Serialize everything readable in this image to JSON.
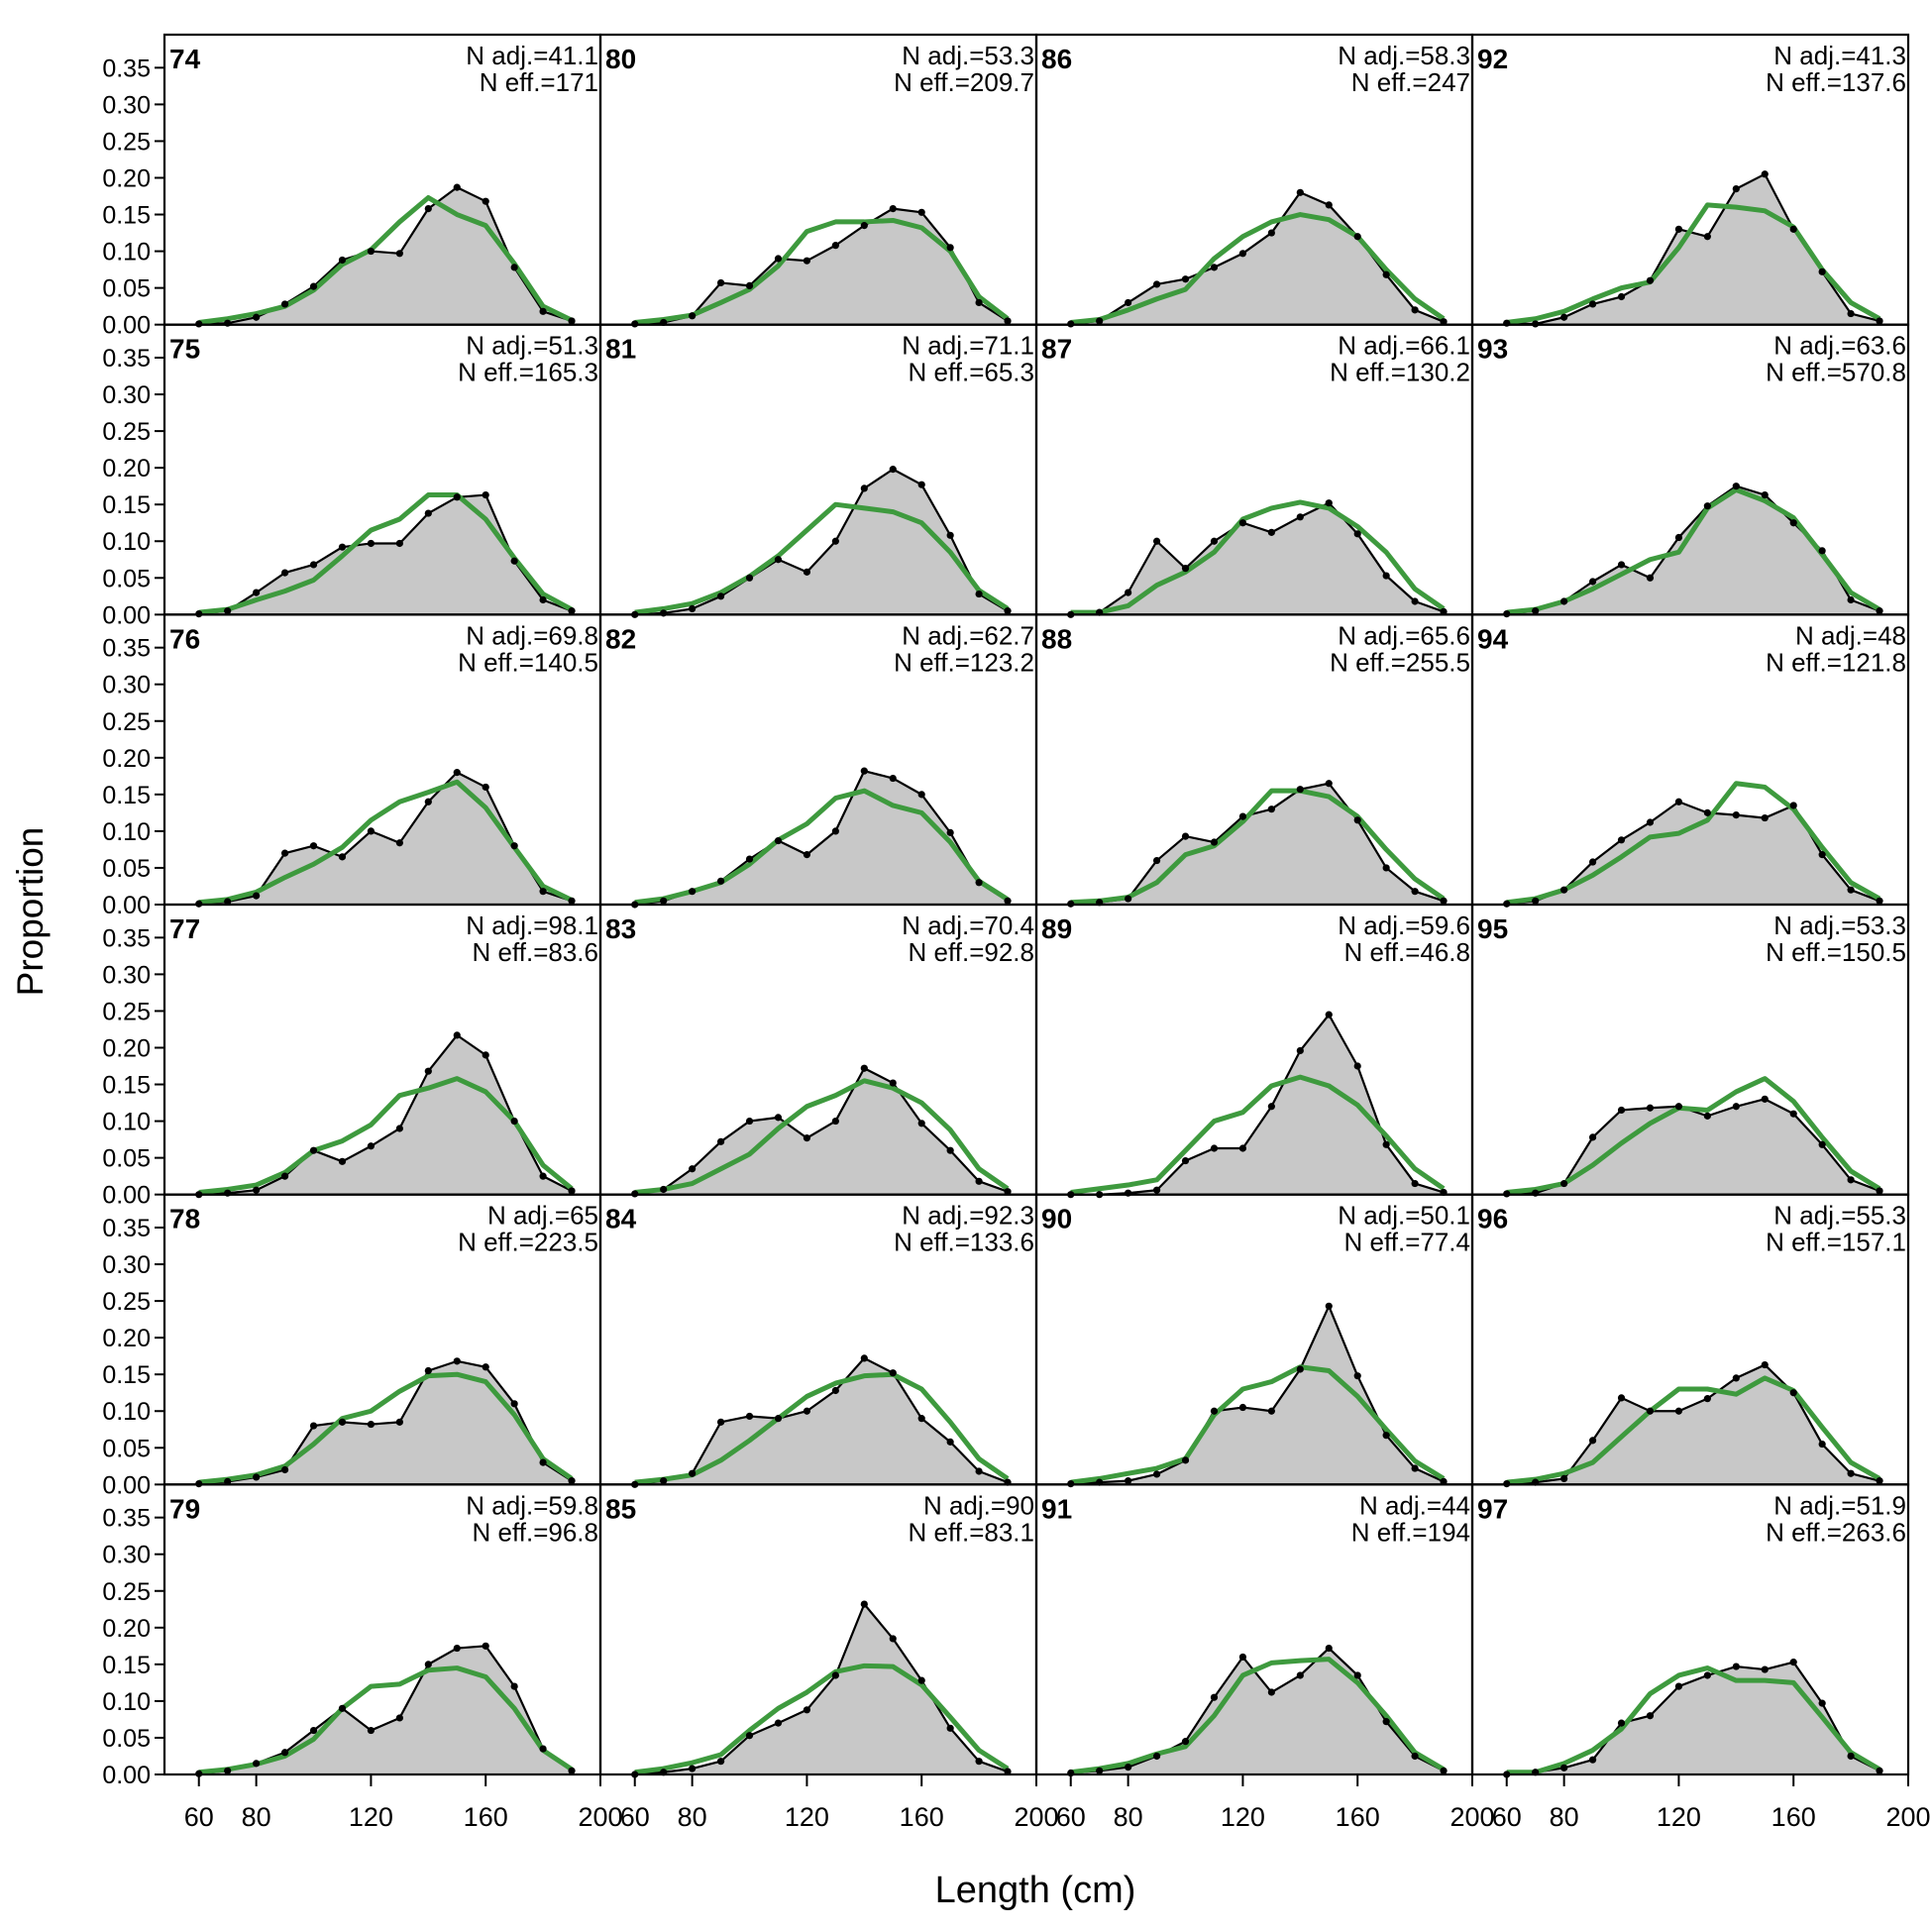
{
  "figure": {
    "ylabel": "Proportion",
    "xlabel": "Length (cm)"
  },
  "axes": {
    "x_ticks": [
      60,
      80,
      120,
      160,
      200
    ],
    "y_ticks": [
      "0.00",
      "0.05",
      "0.10",
      "0.15",
      "0.20",
      "0.25",
      "0.30",
      "0.35"
    ],
    "xlim": [
      48,
      200
    ],
    "ylim": [
      0,
      0.395
    ]
  },
  "colors": {
    "observed_fill": "#c8c8c8",
    "observed_line": "#000000",
    "expected_line": "#3e9a3e",
    "baseline": "#aaaaaa"
  },
  "chart_data": {
    "type": "area",
    "layout": {
      "rows": 6,
      "cols": 4,
      "order": "column-major"
    },
    "x": [
      60,
      70,
      80,
      90,
      100,
      110,
      120,
      130,
      140,
      150,
      160,
      170,
      180,
      190
    ],
    "panels": [
      {
        "label": "74",
        "n_adj": "N adj.=41.1",
        "n_eff": "N eff.=171",
        "observed": [
          0.001,
          0.002,
          0.01,
          0.028,
          0.052,
          0.088,
          0.1,
          0.097,
          0.158,
          0.187,
          0.168,
          0.078,
          0.018,
          0.005
        ],
        "expected": [
          0.003,
          0.008,
          0.015,
          0.025,
          0.047,
          0.082,
          0.102,
          0.14,
          0.173,
          0.15,
          0.135,
          0.083,
          0.025,
          0.006
        ]
      },
      {
        "label": "75",
        "n_adj": "N adj.=51.3",
        "n_eff": "N eff.=165.3",
        "observed": [
          0.001,
          0.005,
          0.03,
          0.057,
          0.068,
          0.092,
          0.097,
          0.097,
          0.138,
          0.16,
          0.163,
          0.073,
          0.02,
          0.005
        ],
        "expected": [
          0.003,
          0.007,
          0.02,
          0.032,
          0.047,
          0.08,
          0.115,
          0.13,
          0.163,
          0.163,
          0.13,
          0.077,
          0.028,
          0.007
        ]
      },
      {
        "label": "76",
        "n_adj": "N adj.=69.8",
        "n_eff": "N eff.=140.5",
        "observed": [
          0.001,
          0.004,
          0.012,
          0.07,
          0.08,
          0.065,
          0.1,
          0.084,
          0.14,
          0.18,
          0.16,
          0.08,
          0.018,
          0.005
        ],
        "expected": [
          0.003,
          0.007,
          0.017,
          0.037,
          0.055,
          0.078,
          0.115,
          0.14,
          0.153,
          0.167,
          0.132,
          0.078,
          0.025,
          0.006
        ]
      },
      {
        "label": "77",
        "n_adj": "N adj.=98.1",
        "n_eff": "N eff.=83.6",
        "observed": [
          0.0,
          0.002,
          0.006,
          0.025,
          0.06,
          0.045,
          0.066,
          0.09,
          0.168,
          0.217,
          0.19,
          0.1,
          0.025,
          0.005
        ],
        "expected": [
          0.003,
          0.007,
          0.013,
          0.03,
          0.06,
          0.073,
          0.095,
          0.135,
          0.145,
          0.158,
          0.14,
          0.1,
          0.04,
          0.008
        ]
      },
      {
        "label": "78",
        "n_adj": "N adj.=65",
        "n_eff": "N eff.=223.5",
        "observed": [
          0.001,
          0.004,
          0.01,
          0.02,
          0.08,
          0.085,
          0.082,
          0.085,
          0.155,
          0.168,
          0.16,
          0.11,
          0.03,
          0.005
        ],
        "expected": [
          0.003,
          0.007,
          0.013,
          0.025,
          0.055,
          0.09,
          0.1,
          0.127,
          0.148,
          0.15,
          0.14,
          0.095,
          0.035,
          0.008
        ]
      },
      {
        "label": "79",
        "n_adj": "N adj.=59.8",
        "n_eff": "N eff.=96.8",
        "observed": [
          0.001,
          0.005,
          0.015,
          0.03,
          0.06,
          0.09,
          0.06,
          0.077,
          0.15,
          0.172,
          0.175,
          0.12,
          0.035,
          0.005
        ],
        "expected": [
          0.003,
          0.007,
          0.014,
          0.025,
          0.048,
          0.09,
          0.12,
          0.123,
          0.142,
          0.145,
          0.133,
          0.09,
          0.033,
          0.007
        ]
      },
      {
        "label": "80",
        "n_adj": "N adj.=53.3",
        "n_eff": "N eff.=209.7",
        "observed": [
          0.001,
          0.003,
          0.012,
          0.057,
          0.053,
          0.09,
          0.087,
          0.108,
          0.135,
          0.158,
          0.153,
          0.105,
          0.03,
          0.005
        ],
        "expected": [
          0.003,
          0.007,
          0.013,
          0.03,
          0.048,
          0.08,
          0.127,
          0.14,
          0.14,
          0.142,
          0.132,
          0.1,
          0.038,
          0.008
        ]
      },
      {
        "label": "81",
        "n_adj": "N adj.=71.1",
        "n_eff": "N eff.=65.3",
        "observed": [
          0.0,
          0.002,
          0.008,
          0.025,
          0.05,
          0.075,
          0.058,
          0.1,
          0.172,
          0.198,
          0.177,
          0.108,
          0.028,
          0.005
        ],
        "expected": [
          0.003,
          0.008,
          0.015,
          0.03,
          0.052,
          0.08,
          0.115,
          0.15,
          0.145,
          0.14,
          0.125,
          0.085,
          0.033,
          0.008
        ]
      },
      {
        "label": "82",
        "n_adj": "N adj.=62.7",
        "n_eff": "N eff.=123.2",
        "observed": [
          0.0,
          0.005,
          0.018,
          0.032,
          0.062,
          0.087,
          0.068,
          0.1,
          0.182,
          0.172,
          0.15,
          0.098,
          0.03,
          0.005
        ],
        "expected": [
          0.003,
          0.008,
          0.018,
          0.03,
          0.055,
          0.088,
          0.11,
          0.145,
          0.155,
          0.135,
          0.125,
          0.085,
          0.032,
          0.007
        ]
      },
      {
        "label": "83",
        "n_adj": "N adj.=70.4",
        "n_eff": "N eff.=92.8",
        "observed": [
          0.001,
          0.007,
          0.035,
          0.072,
          0.1,
          0.105,
          0.077,
          0.1,
          0.172,
          0.152,
          0.097,
          0.06,
          0.018,
          0.004
        ],
        "expected": [
          0.003,
          0.007,
          0.015,
          0.035,
          0.055,
          0.09,
          0.12,
          0.135,
          0.155,
          0.145,
          0.125,
          0.088,
          0.035,
          0.008
        ]
      },
      {
        "label": "84",
        "n_adj": "N adj.=92.3",
        "n_eff": "N eff.=133.6",
        "observed": [
          0.0,
          0.005,
          0.015,
          0.085,
          0.093,
          0.09,
          0.1,
          0.128,
          0.172,
          0.152,
          0.09,
          0.058,
          0.018,
          0.003
        ],
        "expected": [
          0.003,
          0.007,
          0.013,
          0.033,
          0.06,
          0.09,
          0.12,
          0.138,
          0.148,
          0.15,
          0.13,
          0.085,
          0.035,
          0.008
        ]
      },
      {
        "label": "85",
        "n_adj": "N adj.=90",
        "n_eff": "N eff.=83.1",
        "observed": [
          0.0,
          0.003,
          0.008,
          0.018,
          0.053,
          0.07,
          0.088,
          0.135,
          0.232,
          0.185,
          0.128,
          0.063,
          0.018,
          0.004
        ],
        "expected": [
          0.003,
          0.008,
          0.016,
          0.027,
          0.06,
          0.09,
          0.112,
          0.14,
          0.148,
          0.147,
          0.122,
          0.078,
          0.033,
          0.008
        ]
      },
      {
        "label": "86",
        "n_adj": "N adj.=58.3",
        "n_eff": "N eff.=247",
        "observed": [
          0.001,
          0.005,
          0.03,
          0.055,
          0.062,
          0.078,
          0.097,
          0.125,
          0.18,
          0.163,
          0.12,
          0.068,
          0.02,
          0.004
        ],
        "expected": [
          0.003,
          0.007,
          0.02,
          0.035,
          0.048,
          0.09,
          0.12,
          0.14,
          0.15,
          0.143,
          0.12,
          0.075,
          0.035,
          0.008
        ]
      },
      {
        "label": "87",
        "n_adj": "N adj.=66.1",
        "n_eff": "N eff.=130.2",
        "observed": [
          0.0,
          0.003,
          0.03,
          0.1,
          0.063,
          0.1,
          0.125,
          0.112,
          0.133,
          0.152,
          0.11,
          0.053,
          0.018,
          0.004
        ],
        "expected": [
          0.003,
          0.003,
          0.012,
          0.04,
          0.058,
          0.085,
          0.13,
          0.145,
          0.153,
          0.145,
          0.12,
          0.085,
          0.035,
          0.008
        ]
      },
      {
        "label": "88",
        "n_adj": "N adj.=65.6",
        "n_eff": "N eff.=255.5",
        "observed": [
          0.001,
          0.003,
          0.008,
          0.06,
          0.093,
          0.085,
          0.12,
          0.13,
          0.157,
          0.165,
          0.115,
          0.05,
          0.018,
          0.005
        ],
        "expected": [
          0.003,
          0.005,
          0.01,
          0.03,
          0.068,
          0.08,
          0.113,
          0.155,
          0.155,
          0.147,
          0.12,
          0.075,
          0.035,
          0.008
        ]
      },
      {
        "label": "89",
        "n_adj": "N adj.=59.6",
        "n_eff": "N eff.=46.8",
        "observed": [
          0.0,
          0.0,
          0.002,
          0.006,
          0.046,
          0.063,
          0.063,
          0.12,
          0.196,
          0.245,
          0.175,
          0.068,
          0.015,
          0.003
        ],
        "expected": [
          0.003,
          0.008,
          0.013,
          0.02,
          0.06,
          0.1,
          0.112,
          0.148,
          0.16,
          0.148,
          0.122,
          0.08,
          0.035,
          0.008
        ]
      },
      {
        "label": "90",
        "n_adj": "N adj.=50.1",
        "n_eff": "N eff.=77.4",
        "observed": [
          0.001,
          0.003,
          0.005,
          0.014,
          0.033,
          0.1,
          0.105,
          0.1,
          0.157,
          0.243,
          0.148,
          0.067,
          0.022,
          0.004
        ],
        "expected": [
          0.003,
          0.008,
          0.015,
          0.022,
          0.035,
          0.095,
          0.13,
          0.14,
          0.16,
          0.155,
          0.12,
          0.075,
          0.032,
          0.008
        ]
      },
      {
        "label": "91",
        "n_adj": "N adj.=44",
        "n_eff": "N eff.=194",
        "observed": [
          0.002,
          0.005,
          0.01,
          0.025,
          0.045,
          0.105,
          0.16,
          0.112,
          0.135,
          0.172,
          0.135,
          0.072,
          0.025,
          0.005
        ],
        "expected": [
          0.003,
          0.008,
          0.015,
          0.028,
          0.038,
          0.08,
          0.135,
          0.152,
          0.155,
          0.157,
          0.125,
          0.08,
          0.03,
          0.007
        ]
      },
      {
        "label": "92",
        "n_adj": "N adj.=41.3",
        "n_eff": "N eff.=137.6",
        "observed": [
          0.002,
          0.001,
          0.01,
          0.028,
          0.038,
          0.06,
          0.13,
          0.12,
          0.185,
          0.205,
          0.13,
          0.072,
          0.015,
          0.005
        ],
        "expected": [
          0.003,
          0.008,
          0.018,
          0.035,
          0.05,
          0.058,
          0.105,
          0.163,
          0.16,
          0.155,
          0.133,
          0.075,
          0.03,
          0.008
        ]
      },
      {
        "label": "93",
        "n_adj": "N adj.=63.6",
        "n_eff": "N eff.=570.8",
        "observed": [
          0.001,
          0.005,
          0.018,
          0.045,
          0.068,
          0.05,
          0.105,
          0.148,
          0.175,
          0.163,
          0.125,
          0.087,
          0.02,
          0.005
        ],
        "expected": [
          0.003,
          0.007,
          0.018,
          0.035,
          0.055,
          0.075,
          0.085,
          0.145,
          0.17,
          0.155,
          0.132,
          0.082,
          0.03,
          0.007
        ]
      },
      {
        "label": "94",
        "n_adj": "N adj.=48",
        "n_eff": "N eff.=121.8",
        "observed": [
          0.001,
          0.005,
          0.02,
          0.058,
          0.088,
          0.112,
          0.14,
          0.125,
          0.122,
          0.118,
          0.135,
          0.068,
          0.02,
          0.005
        ],
        "expected": [
          0.003,
          0.008,
          0.02,
          0.04,
          0.065,
          0.092,
          0.097,
          0.115,
          0.165,
          0.16,
          0.13,
          0.078,
          0.03,
          0.008
        ]
      },
      {
        "label": "95",
        "n_adj": "N adj.=53.3",
        "n_eff": "N eff.=150.5",
        "observed": [
          0.001,
          0.002,
          0.015,
          0.078,
          0.115,
          0.118,
          0.12,
          0.107,
          0.12,
          0.13,
          0.11,
          0.068,
          0.02,
          0.005
        ],
        "expected": [
          0.003,
          0.007,
          0.015,
          0.04,
          0.07,
          0.097,
          0.118,
          0.115,
          0.14,
          0.158,
          0.127,
          0.078,
          0.032,
          0.008
        ]
      },
      {
        "label": "96",
        "n_adj": "N adj.=55.3",
        "n_eff": "N eff.=157.1",
        "observed": [
          0.001,
          0.003,
          0.008,
          0.06,
          0.118,
          0.1,
          0.1,
          0.117,
          0.145,
          0.163,
          0.125,
          0.055,
          0.015,
          0.005
        ],
        "expected": [
          0.003,
          0.007,
          0.015,
          0.03,
          0.065,
          0.1,
          0.13,
          0.13,
          0.123,
          0.145,
          0.128,
          0.078,
          0.03,
          0.008
        ]
      },
      {
        "label": "97",
        "n_adj": "N adj.=51.9",
        "n_eff": "N eff.=263.6",
        "observed": [
          0.0,
          0.003,
          0.009,
          0.02,
          0.07,
          0.08,
          0.12,
          0.135,
          0.147,
          0.143,
          0.153,
          0.097,
          0.025,
          0.005
        ],
        "expected": [
          0.003,
          0.003,
          0.015,
          0.033,
          0.062,
          0.11,
          0.135,
          0.145,
          0.128,
          0.128,
          0.125,
          0.078,
          0.03,
          0.007
        ]
      }
    ]
  }
}
